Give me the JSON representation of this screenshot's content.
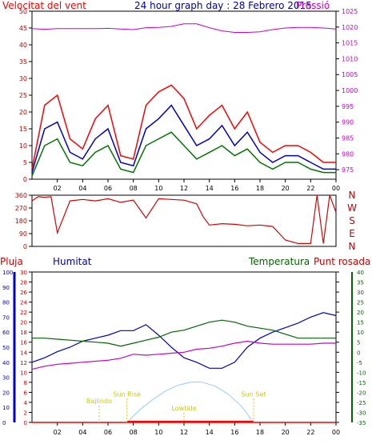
{
  "header": {
    "left_label": "Velocitat del vent",
    "title": "24 hour graph day : 28 Febrero 2015",
    "right_label": "Pressió"
  },
  "colors": {
    "wind_gust": "#ff0000",
    "wind_avg": "#0000cc",
    "wind_low": "#007700",
    "pressure": "#cc00cc",
    "direction": "#dd0000",
    "rain": "#ff0000",
    "humidity": "#0000cc",
    "temperature": "#006600",
    "dewpoint": "#cc00cc",
    "solar": "#99ccff",
    "frame": "#000000"
  },
  "chart_data": [
    {
      "type": "line",
      "name": "wind-and-pressure",
      "x_ticks": [
        "02",
        "04",
        "06",
        "08",
        "10",
        "12",
        "14",
        "16",
        "18",
        "20",
        "22",
        "00"
      ],
      "y_left_ticks": [
        0,
        5,
        10,
        15,
        20,
        25,
        30,
        35,
        40,
        45,
        50
      ],
      "y_right_ticks": [
        975,
        980,
        985,
        990,
        995,
        1000,
        1005,
        1010,
        1015,
        1020,
        1025
      ],
      "ylim_left": [
        0,
        50
      ],
      "ylim_right": [
        972,
        1025
      ],
      "x": [
        0,
        1,
        2,
        3,
        4,
        5,
        6,
        7,
        8,
        9,
        10,
        11,
        12,
        13,
        14,
        15,
        16,
        17,
        18,
        19,
        20,
        21,
        22,
        23,
        24
      ],
      "series": [
        {
          "role": "gust",
          "values": [
            3,
            22,
            25,
            12,
            9,
            18,
            22,
            7,
            6,
            22,
            26,
            28,
            24,
            15,
            19,
            22,
            15,
            20,
            11,
            8,
            10,
            10,
            8,
            5,
            5
          ]
        },
        {
          "role": "average",
          "values": [
            2,
            15,
            17,
            8,
            6,
            12,
            15,
            5,
            4,
            15,
            18,
            22,
            16,
            10,
            12,
            16,
            10,
            14,
            8,
            5,
            7,
            7,
            5,
            3,
            3
          ]
        },
        {
          "role": "minimum",
          "values": [
            1,
            10,
            12,
            5,
            4,
            8,
            10,
            3,
            2,
            10,
            12,
            14,
            10,
            6,
            8,
            10,
            7,
            9,
            5,
            3,
            5,
            5,
            3,
            2,
            2
          ]
        },
        {
          "role": "pressure",
          "values": [
            1019.5,
            1019.3,
            1019.5,
            1019.5,
            1019.5,
            1019.5,
            1019.6,
            1019.4,
            1019.2,
            1019.8,
            1019.9,
            1020.2,
            1021.0,
            1021.0,
            1019.8,
            1018.8,
            1018.3,
            1018.3,
            1018.5,
            1019.2,
            1019.7,
            1019.9,
            1019.9,
            1019.7,
            1019.4
          ]
        }
      ]
    },
    {
      "type": "line",
      "name": "wind-direction",
      "y_ticks": [
        0,
        90,
        180,
        270,
        360
      ],
      "ylim": [
        0,
        360
      ],
      "compass_labels": [
        "N",
        "W",
        "S",
        "E",
        "N"
      ],
      "x": [
        0,
        0.5,
        1,
        1.5,
        2,
        3,
        4,
        5,
        6,
        7,
        8,
        9,
        10,
        11,
        12,
        13,
        13.5,
        14,
        15,
        16,
        17,
        18,
        19,
        20,
        21,
        22,
        22.5,
        23,
        23.5,
        24
      ],
      "values": [
        320,
        350,
        345,
        350,
        95,
        320,
        330,
        320,
        335,
        310,
        325,
        200,
        335,
        330,
        325,
        300,
        210,
        150,
        160,
        155,
        145,
        150,
        140,
        45,
        20,
        20,
        360,
        20,
        360,
        240
      ]
    },
    {
      "type": "line",
      "name": "rain-humidity-temperature",
      "labels": {
        "rain": "Pluja",
        "humidity": "Humitat",
        "temperature": "Temperatura",
        "dewpoint": "Punt rosada"
      },
      "y_humidity_ticks": [
        0,
        10,
        20,
        30,
        40,
        50,
        60,
        70,
        80,
        90,
        100
      ],
      "y_rain_ticks": [
        0,
        2,
        4,
        6,
        8,
        10,
        12,
        14,
        16,
        18,
        20,
        22,
        24,
        26,
        28,
        30
      ],
      "y_temp_ticks": [
        -35,
        -30,
        -25,
        -20,
        -15,
        -10,
        -5,
        0,
        5,
        10,
        15,
        20,
        25,
        30,
        35,
        40
      ],
      "ylim_humidity": [
        0,
        100
      ],
      "ylim_temp": [
        -35,
        40
      ],
      "x": [
        0,
        1,
        2,
        3,
        4,
        5,
        6,
        7,
        8,
        9,
        10,
        11,
        12,
        13,
        14,
        15,
        16,
        17,
        18,
        19,
        20,
        21,
        22,
        23,
        24
      ],
      "series": [
        {
          "role": "humidity",
          "values": [
            40,
            43,
            47,
            50,
            54,
            56,
            58,
            61,
            61,
            65,
            58,
            50,
            43,
            40,
            36,
            36,
            40,
            50,
            56,
            60,
            63,
            66,
            70,
            73,
            71
          ]
        },
        {
          "role": "temperature",
          "values": [
            7,
            7,
            6.5,
            6,
            5.5,
            5,
            4.5,
            3,
            4.5,
            6,
            7.5,
            10,
            11,
            13,
            15,
            16,
            15,
            13,
            12,
            11,
            9,
            7,
            7,
            7,
            7
          ]
        },
        {
          "role": "dewpoint",
          "values": [
            -8.5,
            -7,
            -6,
            -5.5,
            -5,
            -4.5,
            -4,
            -3,
            -1,
            -1.5,
            -1,
            -0.5,
            0,
            1.5,
            2,
            3,
            4.5,
            5.5,
            4.5,
            4,
            4,
            4,
            4,
            4.5,
            4.5
          ]
        },
        {
          "role": "rain",
          "values": [
            0,
            0,
            0,
            0,
            0,
            0,
            0,
            0,
            0,
            0,
            0,
            0,
            0,
            0,
            0,
            0,
            0,
            0,
            0,
            0,
            0,
            0,
            0,
            0,
            0
          ]
        }
      ],
      "solar_curve": {
        "x": [
          7.5,
          8.5,
          9.5,
          10.5,
          11.5,
          12.5,
          13,
          13.5,
          14.5,
          15.5,
          16.5,
          17.5
        ],
        "values": [
          0,
          2.5,
          4.5,
          6.2,
          7.4,
          8,
          8.1,
          8,
          7.2,
          5.6,
          3.3,
          0
        ]
      },
      "markers": [
        {
          "text": "Bajlindo",
          "x": 5.3,
          "level": 3.8
        },
        {
          "text": "Sun Rise",
          "x": 7.5,
          "level": 5.2
        },
        {
          "text": "Lowtide",
          "x": 12.0,
          "level": 2.4
        },
        {
          "text": "Sun Set",
          "x": 17.5,
          "level": 5.2
        }
      ]
    }
  ]
}
